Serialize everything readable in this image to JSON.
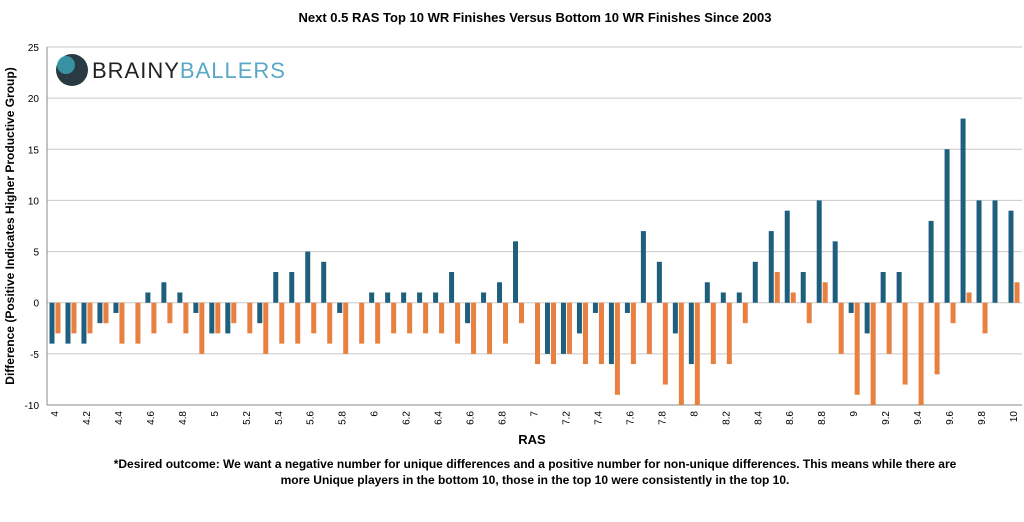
{
  "chart_data": {
    "type": "bar",
    "title": "Next 0.5 RAS Top 10 WR Finishes Versus Bottom 10 WR Finishes Since 2003",
    "x_label": "RAS",
    "y_label": "Difference (Positive Indicates Higher Productive Group)",
    "branding": [
      "BRAINY",
      "BALLERS"
    ],
    "footnote": [
      "*Desired outcome: We want a negative number for unique differences and a positive number for non-unique differences. This means while there are",
      "more Unique players in the bottom 10, those in the top 10 were consistently in the top 10."
    ],
    "categories": [
      "4",
      null,
      "4.2",
      null,
      "4.4",
      null,
      "4.6",
      null,
      "4.8",
      null,
      "5",
      null,
      "5.2",
      null,
      "5.4",
      null,
      "5.6",
      null,
      "5.8",
      null,
      "6",
      null,
      "6.2",
      null,
      "6.4",
      null,
      "6.6",
      null,
      "6.8",
      null,
      "7",
      null,
      "7.2",
      null,
      "7.4",
      null,
      "7.6",
      null,
      "7.8",
      null,
      "8",
      null,
      "8.2",
      null,
      "8.4",
      null,
      "8.6",
      null,
      "8.8",
      null,
      "9",
      null,
      "9.2",
      null,
      "9.4",
      null,
      "9.6",
      null,
      "9.8",
      null,
      "10"
    ],
    "series": [
      {
        "color": "#1d5f7d",
        "values": [
          -4,
          -4,
          -4,
          -2,
          -1,
          0,
          1,
          2,
          1,
          -1,
          -3,
          -3,
          0,
          -2,
          3,
          3,
          5,
          4,
          -1,
          0,
          1,
          1,
          1,
          1,
          1,
          3,
          -2,
          1,
          2,
          6,
          0,
          -5,
          -5,
          -3,
          -1,
          -6,
          -1,
          7,
          4,
          -3,
          -6,
          2,
          1,
          1,
          4,
          7,
          9,
          3,
          10,
          6,
          -1,
          -3,
          3,
          3,
          0,
          8,
          15,
          18,
          10,
          10,
          9
        ]
      },
      {
        "color": "#e8803f",
        "values": [
          -3,
          -3,
          -3,
          -2,
          -4,
          -4,
          -3,
          -2,
          -3,
          -5,
          -3,
          -2,
          -3,
          -5,
          -4,
          -4,
          -3,
          -4,
          -5,
          -4,
          -4,
          -3,
          -3,
          -3,
          -3,
          -4,
          -5,
          -5,
          -4,
          -2,
          -6,
          -6,
          -5,
          -6,
          -6,
          -9,
          -6,
          -5,
          -8,
          -10,
          -10,
          -6,
          -6,
          -2,
          0,
          3,
          1,
          -2,
          2,
          -5,
          -9,
          -10,
          -5,
          -8,
          -10,
          -7,
          -2,
          1,
          -3,
          0,
          2
        ]
      }
    ],
    "ylim": [
      -10,
      25
    ],
    "yticks": [
      -10,
      -5,
      0,
      5,
      10,
      15,
      20,
      25
    ],
    "grid": true
  }
}
